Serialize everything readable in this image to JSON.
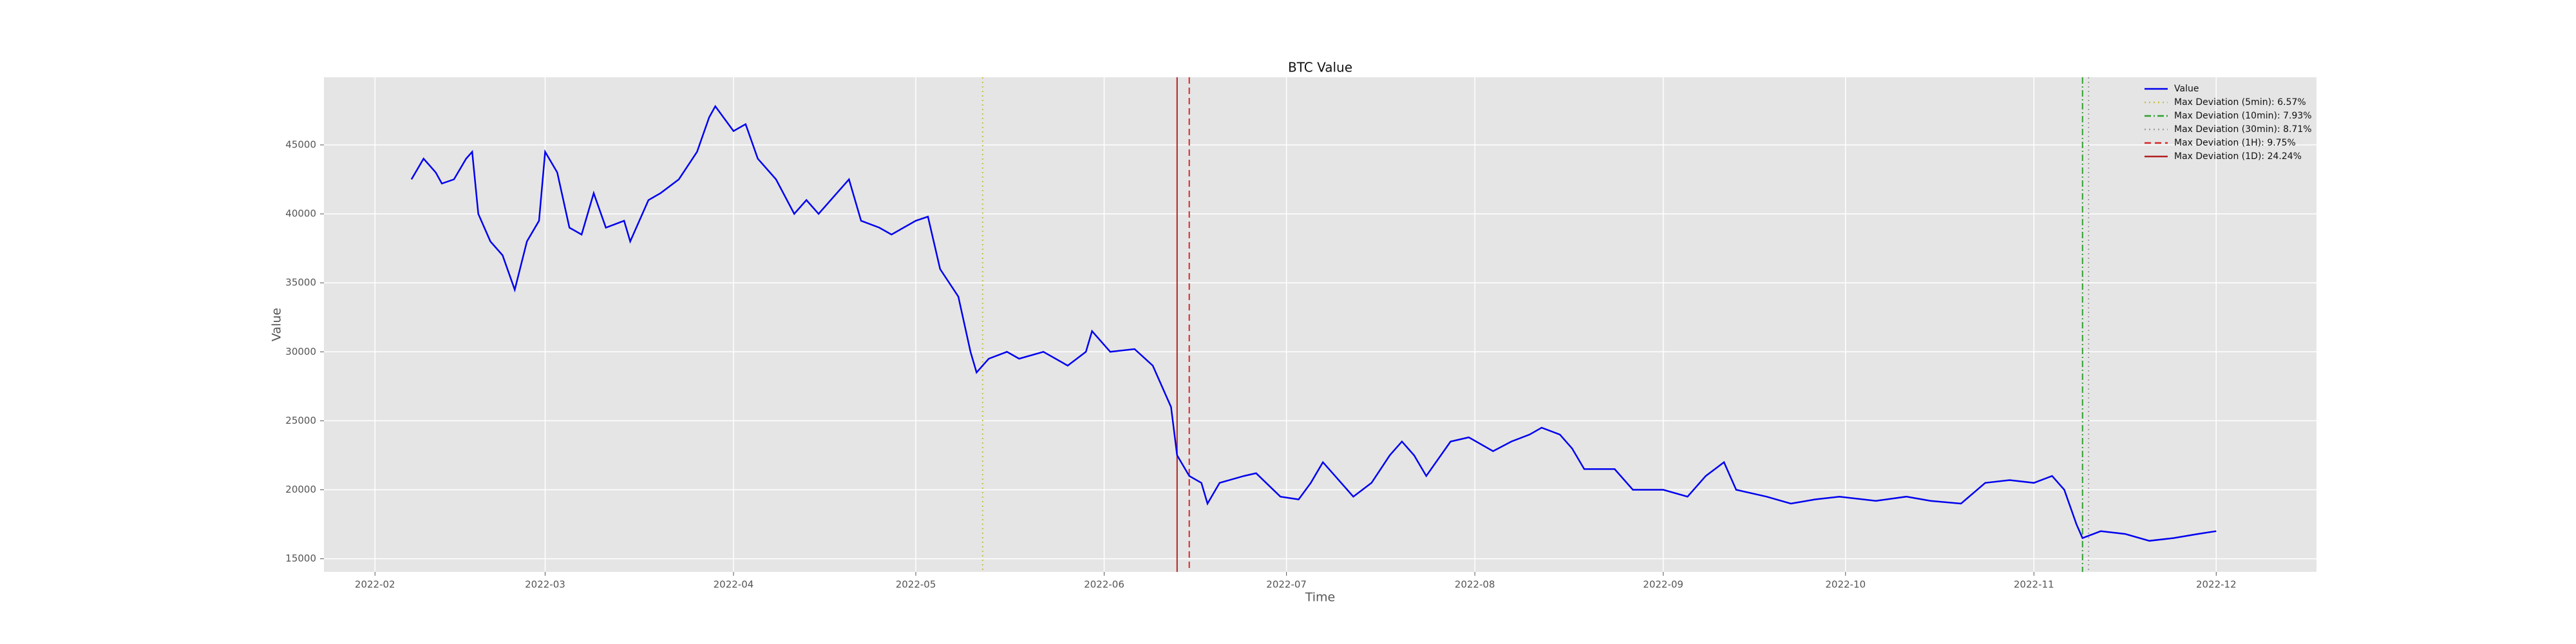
{
  "chart_data": {
    "type": "line",
    "title": "BTC Value",
    "x_label": "Time",
    "y_label": "Value",
    "x": [
      38,
      40,
      41,
      42,
      43,
      45,
      47,
      48,
      49,
      51,
      53,
      55,
      57,
      59,
      60,
      62,
      64,
      66,
      68,
      70,
      73,
      74,
      77,
      79,
      82,
      85,
      87,
      88,
      91,
      93,
      95,
      98,
      101,
      103,
      105,
      108,
      110,
      112,
      115,
      117,
      121,
      123,
      125,
      128,
      130,
      131,
      133,
      136,
      138,
      142,
      146,
      149,
      150,
      153,
      157,
      160,
      163,
      164,
      166,
      168,
      169,
      171,
      175,
      177,
      181,
      184,
      186,
      188,
      190,
      193,
      196,
      199,
      201,
      203,
      205,
      209,
      212,
      216,
      219,
      222,
      224,
      227,
      229,
      231,
      236,
      239,
      244,
      248,
      251,
      254,
      256,
      261,
      265,
      269,
      273,
      279,
      284,
      288,
      293,
      297,
      301,
      305,
      308,
      310,
      312,
      313,
      316,
      320,
      324,
      328,
      332,
      335
    ],
    "series": [
      {
        "name": "Value",
        "color": "#0000ee",
        "values": [
          42500,
          44000,
          43500,
          43000,
          42200,
          42500,
          44000,
          44500,
          40000,
          38000,
          37000,
          34500,
          38000,
          39500,
          44500,
          43000,
          39000,
          38500,
          41500,
          39000,
          39500,
          38000,
          41000,
          41500,
          42500,
          44500,
          47000,
          47800,
          46000,
          46500,
          44000,
          42500,
          40000,
          41000,
          40000,
          41500,
          42500,
          39500,
          39000,
          38500,
          39500,
          39800,
          36000,
          34000,
          30000,
          28500,
          29500,
          30000,
          29500,
          30000,
          29000,
          30000,
          31500,
          30000,
          30200,
          29000,
          26000,
          22500,
          21000,
          20500,
          19000,
          20500,
          21000,
          21200,
          19500,
          19300,
          20500,
          22000,
          21000,
          19500,
          20500,
          22500,
          23500,
          22500,
          21000,
          23500,
          23800,
          22800,
          23500,
          24000,
          24500,
          24000,
          23000,
          21500,
          21500,
          20000,
          20000,
          19500,
          21000,
          22000,
          20000,
          19500,
          19000,
          19300,
          19500,
          19200,
          19500,
          19200,
          19000,
          20500,
          20700,
          20500,
          21000,
          20000,
          17500,
          16500,
          17000,
          16800,
          16300,
          16500,
          16800,
          17000
        ]
      }
    ],
    "vlines": [
      {
        "name": "Max Deviation (5min): 6.57%",
        "color": "#c8c040",
        "style": "dotted",
        "x": 132
      },
      {
        "name": "Max Deviation (10min): 7.93%",
        "color": "#2ca02c",
        "style": "dashdot",
        "x": 313
      },
      {
        "name": "Max Deviation (30min): 8.71%",
        "color": "#a0a0a0",
        "style": "dotted",
        "x": 314
      },
      {
        "name": "Max Deviation (1H): 9.75%",
        "color": "#d62728",
        "style": "dashed",
        "x": 166
      },
      {
        "name": "Max Deviation (1D): 24.24%",
        "color": "#b22222",
        "style": "solid",
        "x": 164
      }
    ],
    "xlim": [
      23.6,
      351.5
    ],
    "xticks": [
      {
        "value": 32,
        "label": "2022-02"
      },
      {
        "value": 60,
        "label": "2022-03"
      },
      {
        "value": 91,
        "label": "2022-04"
      },
      {
        "value": 121,
        "label": "2022-05"
      },
      {
        "value": 152,
        "label": "2022-06"
      },
      {
        "value": 182,
        "label": "2022-07"
      },
      {
        "value": 213,
        "label": "2022-08"
      },
      {
        "value": 244,
        "label": "2022-09"
      },
      {
        "value": 274,
        "label": "2022-10"
      },
      {
        "value": 305,
        "label": "2022-11"
      },
      {
        "value": 335,
        "label": "2022-12"
      }
    ],
    "ylim": [
      14050,
      49900
    ],
    "yticks": [
      15000,
      20000,
      25000,
      30000,
      35000,
      40000,
      45000
    ],
    "grid": true,
    "legend": "upper right"
  }
}
